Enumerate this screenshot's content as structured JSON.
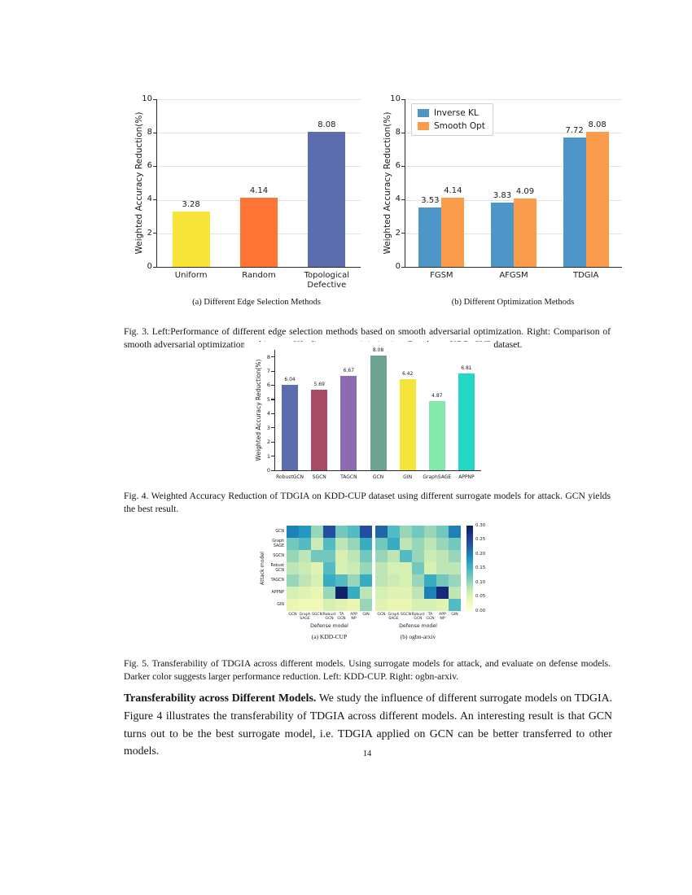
{
  "page": {
    "number": "14"
  },
  "fig3": {
    "caption": "Fig. 3. Left:Performance of different edge selection methods based on smooth adversarial optimization. Right: Comparison of smooth adversarial optimization and inverse KL-divergence minimization. Results on KDD-CUP dataset.",
    "sub_a": "(a) Different Edge Selection Methods",
    "sub_b": "(b) Different Optimization Methods"
  },
  "fig4": {
    "caption": "Fig. 4. Weighted Accuracy Reduction of TDGIA on KDD-CUP dataset using different surrogate models for attack. GCN yields the best result."
  },
  "fig5": {
    "caption": "Fig. 5. Transferability of TDGIA across different models. Using surrogate models for attack, and evaluate on defense models. Darker color suggests larger performance reduction. Left: KDD-CUP. Right: ogbn-arxiv."
  },
  "paragraph": {
    "lead": "Transferability across Different Models.",
    "rest": " We study the influence of different surrogate models on TDGIA. Figure 4 illustrates the transferability of TDGIA across different models. An interesting result is that GCN turns out to be the best surrogate model, i.e. TDGIA applied on GCN can be better transferred to other models."
  },
  "chart_data": [
    {
      "id": "fig3a",
      "type": "bar",
      "categories": [
        "Uniform",
        "Random",
        "Topological\nDefective"
      ],
      "values": [
        3.28,
        4.14,
        8.08
      ],
      "bar_colors": [
        "#f7e53a",
        "#fd7435",
        "#5c6dae"
      ],
      "ylabel": "Weighted Accuracy Reduction(%)",
      "xlabel": "",
      "ylim": [
        0,
        10
      ],
      "yticks": [
        0,
        2,
        4,
        6,
        8,
        10
      ],
      "grid": true
    },
    {
      "id": "fig3b",
      "type": "grouped_bar",
      "categories": [
        "FGSM",
        "AFGSM",
        "TDGIA"
      ],
      "series": [
        {
          "name": "Inverse KL",
          "color": "#4e96c8",
          "values": [
            3.53,
            3.83,
            7.72
          ]
        },
        {
          "name": "Smooth Opt",
          "color": "#fb9b4c",
          "values": [
            4.14,
            4.09,
            8.08
          ]
        }
      ],
      "ylabel": "Weighted Accuracy Reduction(%)",
      "xlabel": "",
      "ylim": [
        0,
        10
      ],
      "yticks": [
        0,
        2,
        4,
        6,
        8,
        10
      ],
      "grid": true,
      "legend_position": "upper left"
    },
    {
      "id": "fig4",
      "type": "bar",
      "categories": [
        "RobustGCN",
        "SGCN",
        "TAGCN",
        "GCN",
        "GIN",
        "GraphSAGE",
        "APPNP"
      ],
      "values": [
        6.04,
        5.69,
        6.67,
        8.08,
        6.42,
        4.87,
        6.81
      ],
      "bar_colors": [
        "#5c6dae",
        "#a74b62",
        "#8d6bb0",
        "#6ba292",
        "#f5e53a",
        "#84e8ac",
        "#22d8c5"
      ],
      "ylabel": "Weighted Accuracy Reduction(%)",
      "xlabel": "",
      "ylim": [
        0,
        8
      ],
      "yticks": [
        0,
        1,
        2,
        3,
        4,
        5,
        6,
        7,
        8
      ],
      "grid": false
    },
    {
      "id": "fig5a",
      "type": "heatmap",
      "title": "(a) KDD-CUP",
      "xlabel": "Defense model",
      "ylabel": "Attack model",
      "rows": [
        "GCN",
        "Graph\nSAGE",
        "SGCN",
        "Robust\nGCN",
        "TAGCN",
        "APPNP",
        "GIN"
      ],
      "cols": [
        "GCN",
        "Graph\nSAGE",
        "SGCN",
        "Robust\nGCN",
        "TA\nGCN",
        "APP\nNP",
        "GIN"
      ],
      "vmin": 0.0,
      "vmax": 0.3,
      "colormap": "YlGnBu",
      "values": [
        [
          0.2,
          0.18,
          0.1,
          0.24,
          0.12,
          0.14,
          0.24
        ],
        [
          0.12,
          0.14,
          0.07,
          0.14,
          0.08,
          0.1,
          0.16
        ],
        [
          0.1,
          0.08,
          0.12,
          0.12,
          0.06,
          0.08,
          0.12
        ],
        [
          0.08,
          0.07,
          0.05,
          0.14,
          0.06,
          0.07,
          0.1
        ],
        [
          0.1,
          0.08,
          0.06,
          0.16,
          0.14,
          0.1,
          0.16
        ],
        [
          0.06,
          0.05,
          0.04,
          0.1,
          0.29,
          0.16,
          0.08
        ],
        [
          0.04,
          0.03,
          0.03,
          0.06,
          0.05,
          0.04,
          0.1
        ]
      ],
      "colorbar": {
        "vmin": 0.0,
        "vmax": 0.3,
        "ticks": [
          "0.00",
          "0.05",
          "0.10",
          "0.15",
          "0.20",
          "0.25",
          "0.30"
        ]
      }
    },
    {
      "id": "fig5b",
      "type": "heatmap",
      "title": "(b) ogbn-arxiv",
      "xlabel": "Defense model",
      "ylabel": "Attack model",
      "rows": [
        "GCN",
        "Graph\nSAGE",
        "SGCN",
        "Robust\nGCN",
        "TAGCN",
        "APPNP",
        "GIN"
      ],
      "cols": [
        "GCN",
        "Graph\nSAGE",
        "SGCN",
        "Robust\nGCN",
        "TA\nGCN",
        "APP\nNP",
        "GIN"
      ],
      "vmin": 0.0,
      "vmax": 0.3,
      "colormap": "YlGnBu",
      "values": [
        [
          0.22,
          0.14,
          0.1,
          0.12,
          0.1,
          0.12,
          0.2
        ],
        [
          0.12,
          0.16,
          0.08,
          0.1,
          0.08,
          0.1,
          0.12
        ],
        [
          0.1,
          0.08,
          0.14,
          0.1,
          0.07,
          0.08,
          0.1
        ],
        [
          0.08,
          0.06,
          0.06,
          0.12,
          0.06,
          0.08,
          0.08
        ],
        [
          0.08,
          0.07,
          0.06,
          0.1,
          0.16,
          0.12,
          0.1
        ],
        [
          0.06,
          0.05,
          0.05,
          0.08,
          0.2,
          0.28,
          0.08
        ],
        [
          0.05,
          0.04,
          0.04,
          0.06,
          0.06,
          0.05,
          0.14
        ]
      ]
    }
  ]
}
